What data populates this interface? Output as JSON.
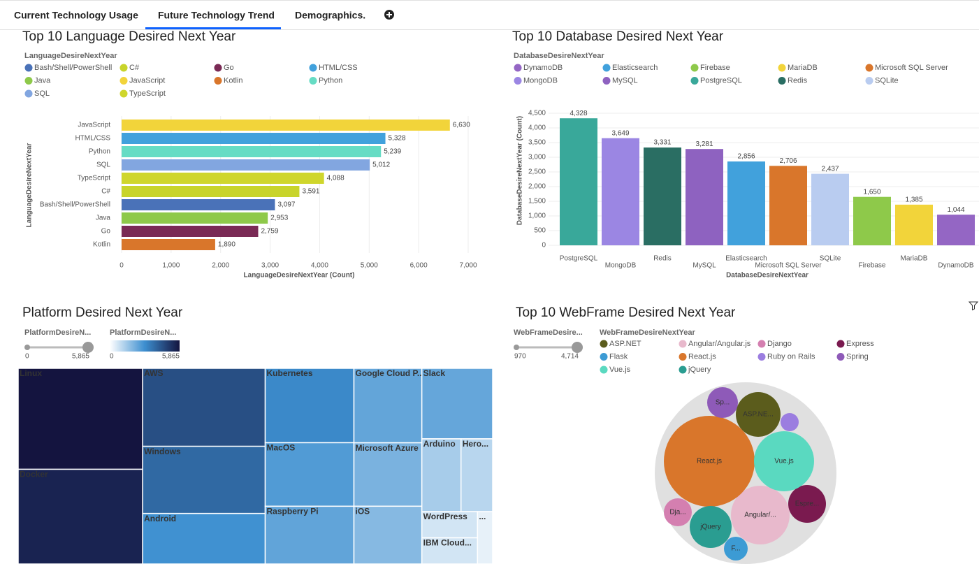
{
  "tabs": [
    "Current Technology Usage",
    "Future Technology Trend",
    "Demographics."
  ],
  "active_tab": 1,
  "chart_data": [
    {
      "type": "bar",
      "orientation": "horizontal",
      "title": "Top 10 Language Desired Next Year",
      "legend_title": "LanguageDesireNextYear",
      "legend": [
        {
          "name": "Bash/Shell/PowerShell",
          "color": "#4a72b8"
        },
        {
          "name": "C#",
          "color": "#c8d42b"
        },
        {
          "name": "Go",
          "color": "#7a2a55"
        },
        {
          "name": "HTML/CSS",
          "color": "#41a1dc"
        },
        {
          "name": "Java",
          "color": "#8ec94a"
        },
        {
          "name": "JavaScript",
          "color": "#f2d43a"
        },
        {
          "name": "Kotlin",
          "color": "#d9762b"
        },
        {
          "name": "Python",
          "color": "#66dcc4"
        },
        {
          "name": "SQL",
          "color": "#82a6e0"
        },
        {
          "name": "TypeScript",
          "color": "#cfd62c"
        }
      ],
      "categories": [
        "JavaScript",
        "HTML/CSS",
        "Python",
        "SQL",
        "TypeScript",
        "C#",
        "Bash/Shell/PowerShell",
        "Java",
        "Go",
        "Kotlin"
      ],
      "values": [
        6630,
        5328,
        5239,
        5012,
        4088,
        3591,
        3097,
        2953,
        2759,
        1890
      ],
      "value_labels": [
        "6,630",
        "5,328",
        "5,239",
        "5,012",
        "4,088",
        "3,591",
        "3,097",
        "2,953",
        "2,759",
        "1,890"
      ],
      "xlim": [
        0,
        7000
      ],
      "xticks": [
        0,
        {
          "value": 1000,
          "label": "1,000"
        },
        {
          "value": 2000,
          "label": "2,000"
        },
        {
          "value": 3000,
          "label": "3,000"
        },
        {
          "value": 4000,
          "label": "4,000"
        },
        {
          "value": 5000,
          "label": "5,000"
        },
        {
          "value": 6000,
          "label": "6,000"
        },
        {
          "value": 7000,
          "label": "7,000"
        }
      ],
      "xlabel": "LanguageDesireNextYear (Count)",
      "ylabel": "LanguageDesireNextYear",
      "grid": true
    },
    {
      "type": "bar",
      "orientation": "vertical",
      "title": "Top 10 Database Desired Next Year",
      "legend_title": "DatabaseDesireNextYear",
      "legend": [
        {
          "name": "DynamoDB",
          "color": "#9466c4"
        },
        {
          "name": "Elasticsearch",
          "color": "#41a1dc"
        },
        {
          "name": "Firebase",
          "color": "#8ec94a"
        },
        {
          "name": "MariaDB",
          "color": "#f2d43a"
        },
        {
          "name": "Microsoft SQL Server",
          "color": "#d9762b"
        },
        {
          "name": "MongoDB",
          "color": "#9b86e3"
        },
        {
          "name": "MySQL",
          "color": "#8e62c0"
        },
        {
          "name": "PostgreSQL",
          "color": "#39a89a"
        },
        {
          "name": "Redis",
          "color": "#2a6e63"
        },
        {
          "name": "SQLite",
          "color": "#b9ccf0"
        }
      ],
      "categories": [
        "PostgreSQL",
        "MongoDB",
        "Redis",
        "MySQL",
        "Elasticsearch",
        "Microsoft SQL Server",
        "SQLite",
        "Firebase",
        "MariaDB",
        "DynamoDB"
      ],
      "values": [
        4328,
        3649,
        3331,
        3281,
        2856,
        2706,
        2437,
        1650,
        1385,
        1044
      ],
      "value_labels": [
        "4,328",
        "3,649",
        "3,331",
        "3,281",
        "2,856",
        "2,706",
        "2,437",
        "1,650",
        "1,385",
        "1,044"
      ],
      "ylim": [
        0,
        4500
      ],
      "yticks": [
        0,
        500,
        {
          "value": 1000,
          "label": "1,000"
        },
        {
          "value": 1500,
          "label": "1,500"
        },
        {
          "value": 2000,
          "label": "2,000"
        },
        {
          "value": 2500,
          "label": "2,500"
        },
        {
          "value": 3000,
          "label": "3,000"
        },
        {
          "value": 3500,
          "label": "3,500"
        },
        {
          "value": 4000,
          "label": "4,000"
        },
        {
          "value": 4500,
          "label": "4,500"
        }
      ],
      "xlabel": "DatabaseDesireNextYear",
      "ylabel": "DatabaseDesireNextYear (Count)",
      "grid": true
    },
    {
      "type": "treemap",
      "title": "Platform Desired Next Year",
      "size_title": "PlatformDesireN...",
      "size_range": [
        0,
        {
          "value": 5865,
          "label": "5,865"
        }
      ],
      "color_title": "PlatformDesireN...",
      "color_range": [
        0,
        {
          "value": 5865,
          "label": "5,865"
        }
      ],
      "color_scale": [
        "#ffffff",
        "#3d8fd0",
        "#14143f"
      ],
      "categories": [
        "Linux",
        "Docker",
        "AWS",
        "Windows",
        "Android",
        "Kubernetes",
        "MacOS",
        "Raspberry Pi",
        "Google Cloud P...",
        "Microsoft Azure",
        "iOS",
        "Slack",
        "Arduino",
        "Hero...",
        "WordPress",
        "IBM Cloud...",
        "..."
      ],
      "values": [
        5865,
        5500,
        4460,
        3840,
        2890,
        3080,
        2630,
        2390,
        2360,
        2010,
        1830,
        2330,
        1330,
        1075,
        680,
        680,
        370
      ]
    },
    {
      "type": "bubble",
      "title": "Top 10 WebFrame Desired Next Year",
      "size_title": "WebFrameDesire...",
      "size_range": [
        970,
        {
          "value": 4714,
          "label": "4,714"
        }
      ],
      "legend_title": "WebFrameDesireNextYear",
      "categories": [
        "ASP.NET",
        "Angular/Angular.js",
        "Django",
        "Express",
        "Flask",
        "React.js",
        "Ruby on Rails",
        "Spring",
        "Vue.js",
        "jQuery"
      ],
      "colors": [
        "#5b5c1c",
        "#e8b9cc",
        "#d47fb0",
        "#7a1a4f",
        "#3c9bd4",
        "#d9762b",
        "#9b7de0",
        "#8e5ab8",
        "#5ad9c0",
        "#2a9d91"
      ],
      "values": [
        1759,
        2443,
        1183,
        1487,
        1081,
        4714,
        970,
        1261,
        2521,
        1645
      ],
      "point_labels": [
        "ASP.NE...",
        "Angular/...",
        "Dja...",
        "Espre...",
        "F...",
        "React.js",
        null,
        "Sp...",
        "Vue.js",
        "jQuery"
      ]
    }
  ]
}
